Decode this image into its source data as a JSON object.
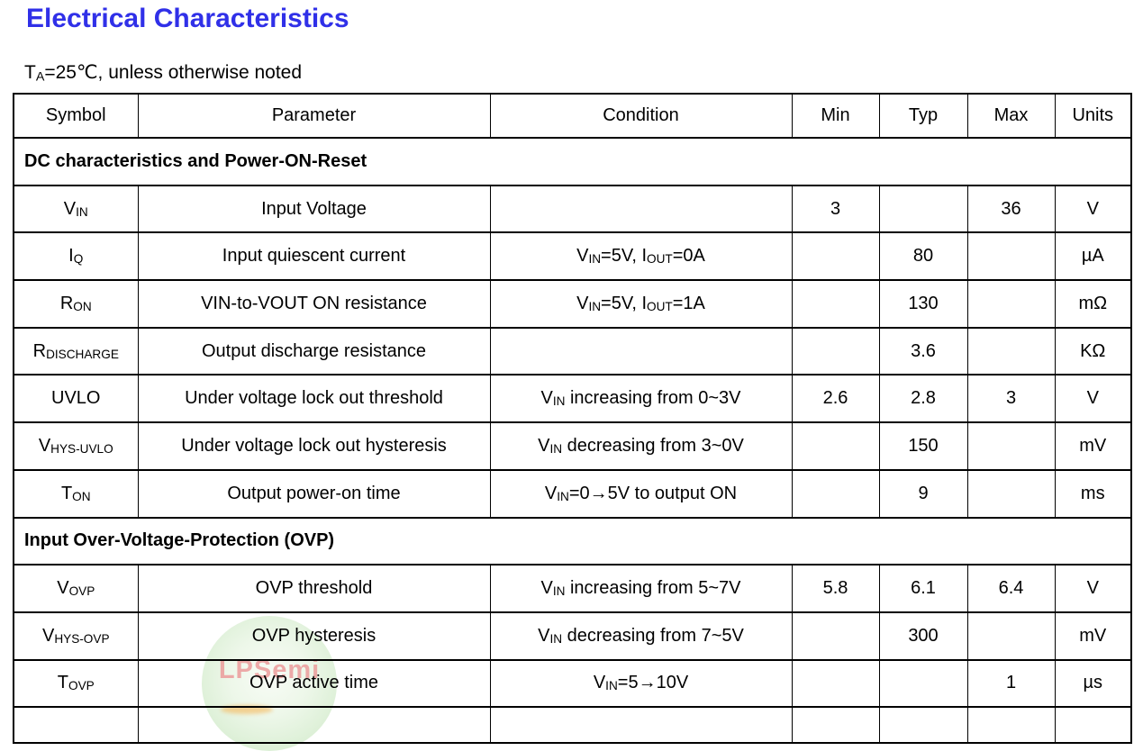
{
  "page": {
    "title": "Electrical Characteristics",
    "title_color": "#3030e8",
    "subtitle": [
      {
        "t": "T"
      },
      {
        "s": "A"
      },
      {
        "t": "=25℃, unless otherwise noted"
      }
    ]
  },
  "table": {
    "columns": [
      "Symbol",
      "Parameter",
      "Condition",
      "Min",
      "Typ",
      "Max",
      "Units"
    ],
    "sections": [
      {
        "header": "DC characteristics and Power-ON-Reset",
        "rows": [
          {
            "cells": [
              [
                {
                  "t": "V"
                },
                {
                  "s": "IN"
                }
              ],
              "Input Voltage",
              "",
              "3",
              "",
              "36",
              "V"
            ]
          },
          {
            "cells": [
              [
                {
                  "t": "I"
                },
                {
                  "s": "Q"
                }
              ],
              "Input quiescent current",
              [
                {
                  "t": "V"
                },
                {
                  "s": "IN"
                },
                {
                  "t": "=5V, I"
                },
                {
                  "s": "OUT"
                },
                {
                  "t": "=0A"
                }
              ],
              "",
              "80",
              "",
              "µA"
            ]
          },
          {
            "cells": [
              [
                {
                  "t": "R"
                },
                {
                  "s": "ON"
                }
              ],
              "VIN-to-VOUT ON resistance",
              [
                {
                  "t": "V"
                },
                {
                  "s": "IN"
                },
                {
                  "t": "=5V, I"
                },
                {
                  "s": "OUT"
                },
                {
                  "t": "=1A"
                }
              ],
              "",
              "130",
              "",
              "mΩ"
            ]
          },
          {
            "cells": [
              [
                {
                  "t": "R"
                },
                {
                  "s": "DISCHARGE"
                }
              ],
              "Output discharge resistance",
              "",
              "",
              "3.6",
              "",
              "KΩ"
            ]
          },
          {
            "cells": [
              "UVLO",
              "Under voltage lock out threshold",
              [
                {
                  "t": "V"
                },
                {
                  "s": "IN"
                },
                {
                  "t": " increasing from 0~3V"
                }
              ],
              "2.6",
              "2.8",
              "3",
              "V"
            ]
          },
          {
            "cells": [
              [
                {
                  "t": "V"
                },
                {
                  "s": "HYS-UVLO"
                }
              ],
              "Under voltage lock out hysteresis",
              [
                {
                  "t": "V"
                },
                {
                  "s": "IN"
                },
                {
                  "t": " decreasing from 3~0V"
                }
              ],
              "",
              "150",
              "",
              "mV"
            ]
          },
          {
            "cells": [
              [
                {
                  "t": "T"
                },
                {
                  "s": "ON"
                }
              ],
              "Output power-on time",
              [
                {
                  "t": "V"
                },
                {
                  "s": "IN"
                },
                {
                  "t": "=0→5V to output ON"
                }
              ],
              "",
              "9",
              "",
              "ms"
            ]
          }
        ]
      },
      {
        "header": "Input Over-Voltage-Protection (OVP)",
        "rows": [
          {
            "cells": [
              [
                {
                  "t": "V"
                },
                {
                  "s": "OVP"
                }
              ],
              "OVP threshold",
              [
                {
                  "t": "V"
                },
                {
                  "s": "IN"
                },
                {
                  "t": " increasing from 5~7V"
                }
              ],
              "5.8",
              "6.1",
              "6.4",
              "V"
            ]
          },
          {
            "cells": [
              [
                {
                  "t": "V"
                },
                {
                  "s": "HYS-OVP"
                }
              ],
              "OVP hysteresis",
              [
                {
                  "t": "V"
                },
                {
                  "s": "IN"
                },
                {
                  "t": " decreasing from 7~5V"
                }
              ],
              "",
              "300",
              "",
              "mV"
            ]
          },
          {
            "cells": [
              [
                {
                  "t": "T"
                },
                {
                  "s": "OVP"
                }
              ],
              "OVP active time",
              [
                {
                  "t": "V"
                },
                {
                  "s": "IN"
                },
                {
                  "t": "=5→10V"
                }
              ],
              "",
              "",
              "1",
              "µs"
            ]
          }
        ]
      }
    ]
  },
  "watermark": {
    "text": "LPSemi",
    "text_color": "#ec9c9c",
    "circle_color": "#dff1d9"
  }
}
